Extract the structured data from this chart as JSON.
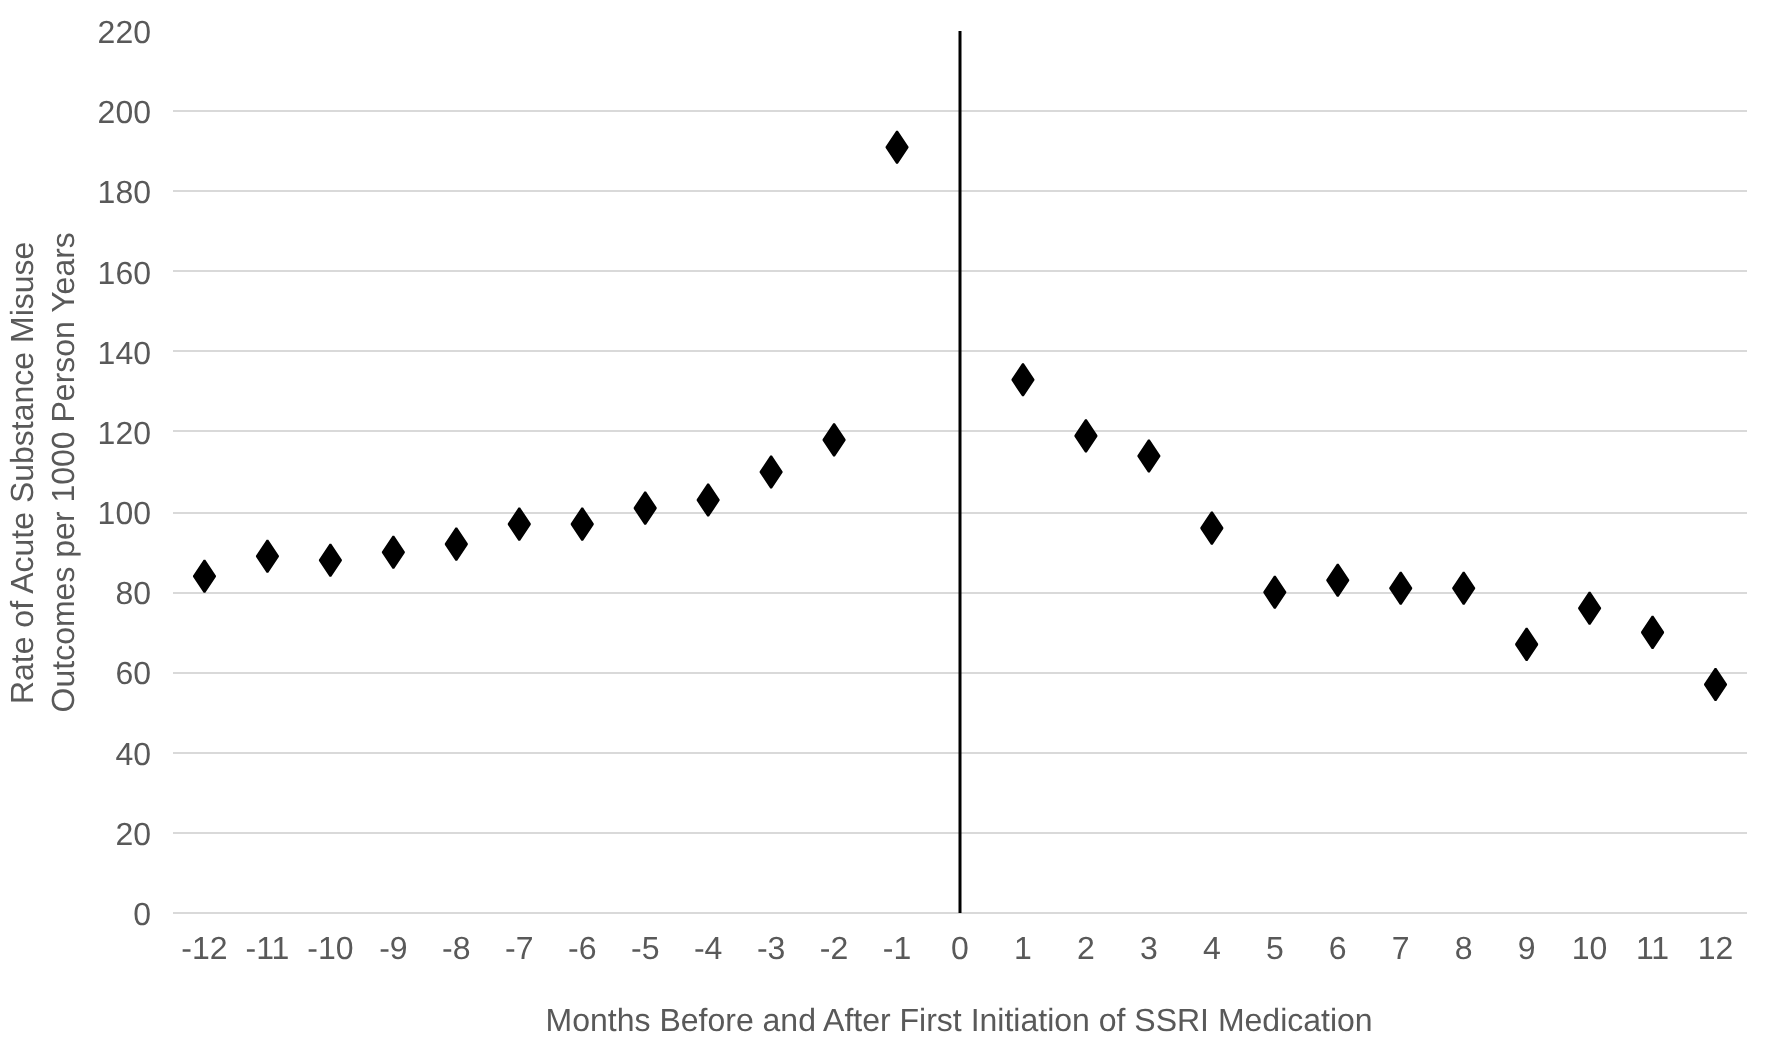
{
  "chart_data": {
    "type": "scatter",
    "xlabel": "Months Before and After First Initiation of SSRI Medication",
    "ylabel": "Rate of Acute Substance Misuse\nOutcomes per 1000 Person Years",
    "x": [
      -12,
      -11,
      -10,
      -9,
      -8,
      -7,
      -6,
      -5,
      -4,
      -3,
      -2,
      -1,
      1,
      2,
      3,
      4,
      5,
      6,
      7,
      8,
      9,
      10,
      11,
      12
    ],
    "series": [
      {
        "color": "#000000",
        "values": [
          84,
          89,
          88,
          90,
          92,
          97,
          97,
          101,
          103,
          110,
          118,
          191,
          133,
          119,
          114,
          96,
          80,
          83,
          81,
          81,
          67,
          76,
          70,
          57
        ]
      }
    ],
    "xlim": [
      -12.5,
      12.5
    ],
    "xticks": [
      -12,
      -11,
      -10,
      -9,
      -8,
      -7,
      -6,
      -5,
      -4,
      -3,
      -2,
      -1,
      0,
      1,
      2,
      3,
      4,
      5,
      6,
      7,
      8,
      9,
      10,
      11,
      12
    ],
    "ylim": [
      0,
      220
    ],
    "yticks": [
      0,
      20,
      40,
      60,
      80,
      100,
      120,
      140,
      160,
      180,
      200,
      220
    ],
    "grid": "y",
    "marker": "diamond",
    "ref_lines": [
      {
        "axis": "x",
        "value": 0,
        "color": "#000000"
      }
    ]
  }
}
